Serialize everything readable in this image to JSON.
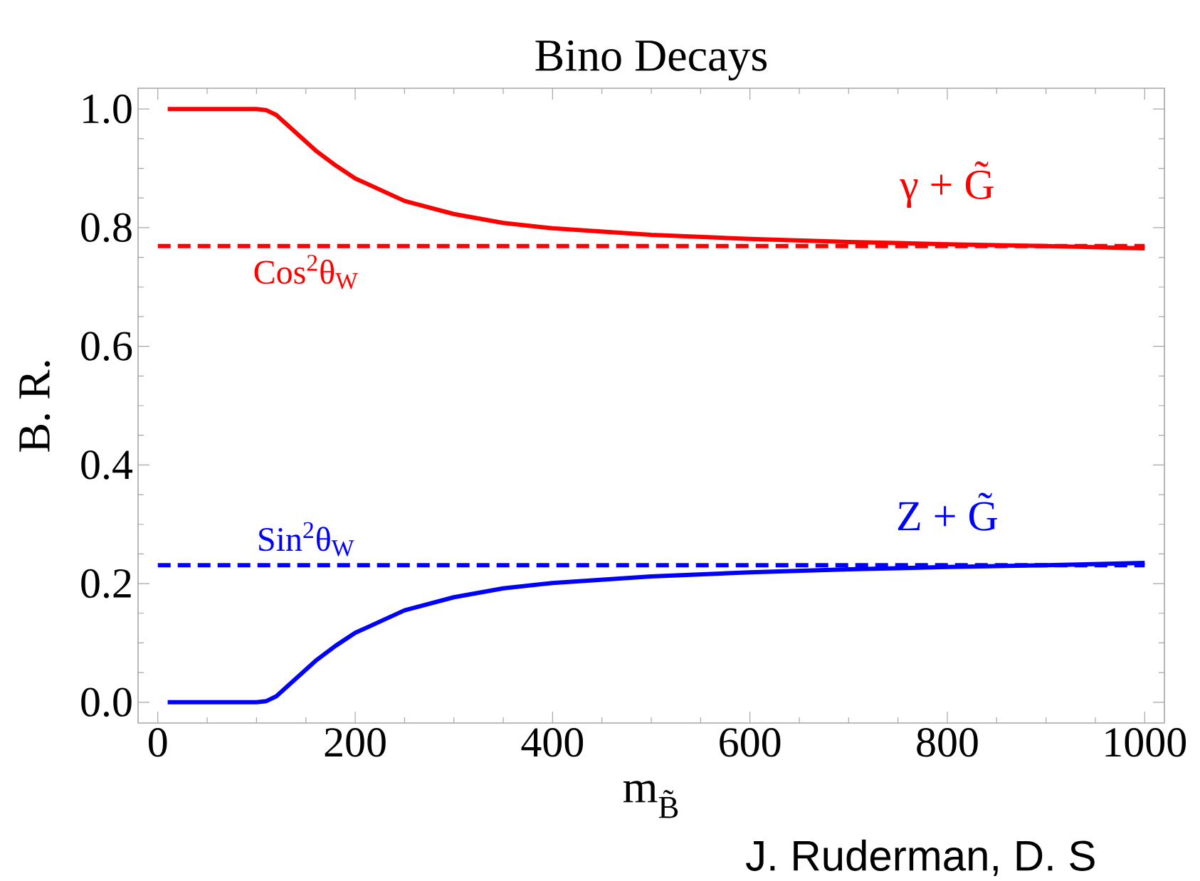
{
  "chart_data": {
    "type": "line",
    "title": "Bino Decays",
    "xlabel": "m$_{B̃}$",
    "ylabel": "B. R.",
    "xlim": [
      -20,
      1020
    ],
    "ylim": [
      -0.035,
      1.035
    ],
    "xticks": [
      0,
      200,
      400,
      600,
      800,
      1000
    ],
    "yticks": [
      {
        "value": 0,
        "label": "0.0"
      },
      {
        "value": 0.2,
        "label": "0.2"
      },
      {
        "value": 0.4,
        "label": "0.4"
      },
      {
        "value": 0.6,
        "label": "0.6"
      },
      {
        "value": 0.8,
        "label": "0.8"
      },
      {
        "value": 1,
        "label": "1.0"
      }
    ],
    "grid": false,
    "line_style": "solid",
    "marker": "none",
    "series": [
      {
        "name": "γ + G̃",
        "color": "#ff0000",
        "x": [
          10,
          100,
          110,
          120,
          140,
          160,
          180,
          200,
          250,
          300,
          350,
          400,
          500,
          600,
          700,
          800,
          900,
          1000
        ],
        "values": [
          1,
          1,
          0.998,
          0.99,
          0.96,
          0.93,
          0.905,
          0.883,
          0.845,
          0.823,
          0.808,
          0.799,
          0.788,
          0.781,
          0.776,
          0.772,
          0.769,
          0.765
        ]
      },
      {
        "name": "Z + G̃",
        "color": "#0000ff",
        "x": [
          10,
          100,
          110,
          120,
          140,
          160,
          180,
          200,
          250,
          300,
          350,
          400,
          500,
          600,
          700,
          800,
          900,
          1000
        ],
        "values": [
          0,
          0,
          0.002,
          0.01,
          0.04,
          0.07,
          0.095,
          0.117,
          0.155,
          0.177,
          0.192,
          0.201,
          0.212,
          0.219,
          0.224,
          0.228,
          0.231,
          0.235
        ]
      }
    ],
    "ref_lines": [
      {
        "axis": "y",
        "value": 0.769,
        "label": "Cos$^{2}$θ$_{W}$",
        "color": "#ff0000",
        "line_style": "dashed"
      },
      {
        "axis": "y",
        "value": 0.231,
        "label": "Sin$^{2}$θ$_{W}$",
        "color": "#0000ff",
        "line_style": "dashed"
      }
    ],
    "annotations": [
      "J. Ruderman, D. S"
    ]
  }
}
